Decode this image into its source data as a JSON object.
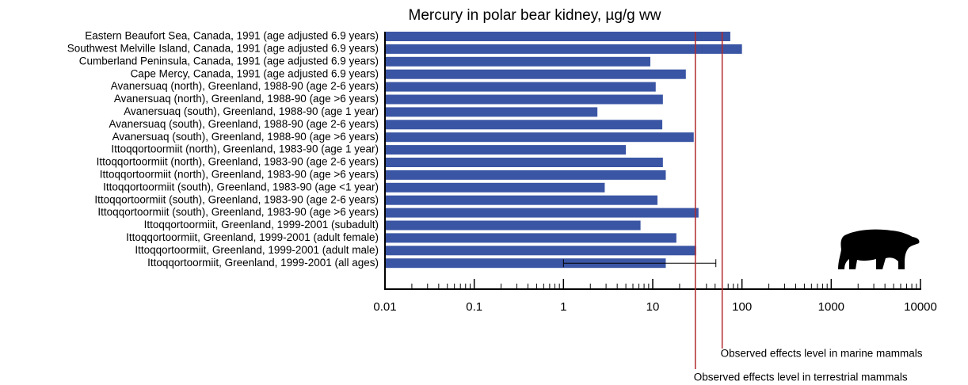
{
  "chart_data": {
    "type": "bar",
    "orientation": "horizontal",
    "title": "Mercury in polar bear kidney, µg/g ww",
    "categories": [
      "Eastern Beaufort Sea, Canada, 1991 (age adjusted 6.9 years)",
      "Southwest Melville Island, Canada, 1991 (age adjusted 6.9 years)",
      "Cumberland Peninsula, Canada, 1991 (age adjusted 6.9 years)",
      "Cape Mercy, Canada, 1991 (age adjusted 6.9 years)",
      "Avanersuaq (north), Greenland, 1988-90 (age 2-6 years)",
      "Avanersuaq (north), Greenland, 1988-90 (age >6 years)",
      "Avanersuaq (south), Greenland, 1988-90 (age 1 year)",
      "Avanersuaq (south), Greenland, 1988-90 (age 2-6 years)",
      "Avanersuaq (south), Greenland, 1988-90 (age >6 years)",
      "Ittoqqortoormiit (north), Greenland, 1983-90 (age 1 year)",
      "Ittoqqortoormiit (north), Greenland, 1983-90 (age 2-6 years)",
      "Ittoqqortoormiit (north), Greenland, 1983-90 (age >6 years)",
      "Ittoqqortoormiit (south), Greenland, 1983-90 (age <1 year)",
      "Ittoqqortoormiit (south), Greenland, 1983-90 (age 2-6 years)",
      "Ittoqqortoormiit (south), Greenland, 1983-90 (age >6 years)",
      "Ittoqqortoormiit, Greenland, 1999-2001 (subadult)",
      "Ittoqqortoormiit, Greenland, 1999-2001 (adult female)",
      "Ittoqqortoormiit, Greenland, 1999-2001 (adult male)",
      "Ittoqqortoormiit, Greenland, 1999-2001 (all ages)"
    ],
    "values": [
      74,
      100,
      9.4,
      23.5,
      10.8,
      13,
      2.4,
      12.8,
      28.8,
      5,
      13,
      14,
      2.9,
      11.3,
      32.6,
      7.3,
      18.4,
      30.7,
      14
    ],
    "error_low": [
      null,
      null,
      null,
      null,
      null,
      null,
      null,
      null,
      null,
      null,
      null,
      null,
      null,
      null,
      null,
      null,
      null,
      null,
      1
    ],
    "error_high": [
      null,
      null,
      null,
      null,
      null,
      null,
      null,
      null,
      null,
      null,
      null,
      null,
      null,
      null,
      null,
      null,
      null,
      null,
      51
    ],
    "color": "#3a55a4",
    "xscale": "log",
    "xlim": [
      0.01,
      10000
    ],
    "xticks": [
      0.01,
      0.1,
      1,
      10,
      100,
      1000,
      10000
    ],
    "xminorticks": [
      0.02,
      0.03,
      0.04,
      0.05,
      0.06,
      0.07,
      0.08,
      0.09,
      0.2,
      0.3,
      0.4,
      0.5,
      0.6,
      0.7,
      0.8,
      0.9,
      2,
      3,
      4,
      5,
      6,
      7,
      8,
      9,
      20,
      30,
      40,
      50,
      60,
      70,
      80,
      90,
      200,
      300,
      400,
      500,
      600,
      700,
      800,
      900,
      2000,
      3000,
      4000,
      5000,
      6000,
      7000,
      8000,
      9000
    ],
    "reference_lines": [
      {
        "value": 60,
        "label": "Observed effects level in marine mammals",
        "color": "#b22a2e"
      },
      {
        "value": 30,
        "label": "Observed effects level in terrestrial mammals",
        "color": "#b22a2e"
      }
    ]
  }
}
